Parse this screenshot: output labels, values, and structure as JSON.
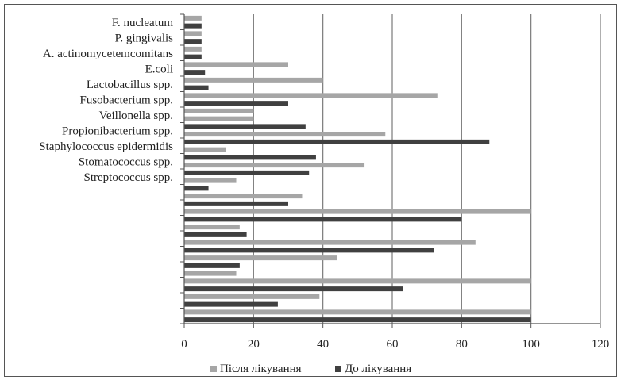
{
  "chart_data": {
    "type": "bar",
    "orientation": "horizontal",
    "title": "",
    "xlabel": "",
    "ylabel": "",
    "xlim": [
      0,
      120
    ],
    "xticks": [
      0,
      20,
      40,
      60,
      80,
      100,
      120
    ],
    "grid": "vertical",
    "legend_position": "bottom",
    "colors": {
      "after": "#a6a6a6",
      "before": "#404040"
    },
    "series": [
      {
        "name": "Після лікування",
        "key": "after"
      },
      {
        "name": "До лікування",
        "key": "before"
      }
    ],
    "category_labels": [
      "F. nucleatum",
      "P. gingivalis",
      "A. actinomycetemcomitans",
      "E.coli",
      "Lactobacillus spp.",
      "Fusobacterium spp.",
      "Veillonella spp.",
      "Propionibacterium spp.",
      "Staphylococcus epidermidis",
      "Stomatococcus spp.",
      "Streptococcus spp."
    ],
    "bars": [
      {
        "series": "after",
        "value": 5
      },
      {
        "series": "before",
        "value": 5
      },
      {
        "series": "after",
        "value": 5
      },
      {
        "series": "before",
        "value": 5
      },
      {
        "series": "after",
        "value": 5
      },
      {
        "series": "before",
        "value": 5
      },
      {
        "series": "after",
        "value": 30
      },
      {
        "series": "before",
        "value": 6
      },
      {
        "series": "after",
        "value": 40
      },
      {
        "series": "before",
        "value": 7
      },
      {
        "series": "after",
        "value": 73
      },
      {
        "series": "before",
        "value": 30
      },
      {
        "series": "after",
        "value": 20
      },
      {
        "series": "after",
        "value": 20
      },
      {
        "series": "before",
        "value": 35
      },
      {
        "series": "after",
        "value": 58
      },
      {
        "series": "before",
        "value": 88
      },
      {
        "series": "after",
        "value": 12
      },
      {
        "series": "before",
        "value": 38
      },
      {
        "series": "after",
        "value": 52
      },
      {
        "series": "before",
        "value": 36
      },
      {
        "series": "after",
        "value": 15
      },
      {
        "series": "before",
        "value": 7
      },
      {
        "series": "after",
        "value": 34
      },
      {
        "series": "before",
        "value": 30
      },
      {
        "series": "after",
        "value": 100
      },
      {
        "series": "before",
        "value": 80
      },
      {
        "series": "after",
        "value": 16
      },
      {
        "series": "before",
        "value": 18
      },
      {
        "series": "after",
        "value": 84
      },
      {
        "series": "before",
        "value": 72
      },
      {
        "series": "after",
        "value": 44
      },
      {
        "series": "before",
        "value": 16
      },
      {
        "series": "after",
        "value": 15
      },
      {
        "series": "after",
        "value": 100
      },
      {
        "series": "before",
        "value": 63
      },
      {
        "series": "after",
        "value": 39
      },
      {
        "series": "before",
        "value": 27
      },
      {
        "series": "after",
        "value": 100
      },
      {
        "series": "before",
        "value": 100
      }
    ]
  }
}
